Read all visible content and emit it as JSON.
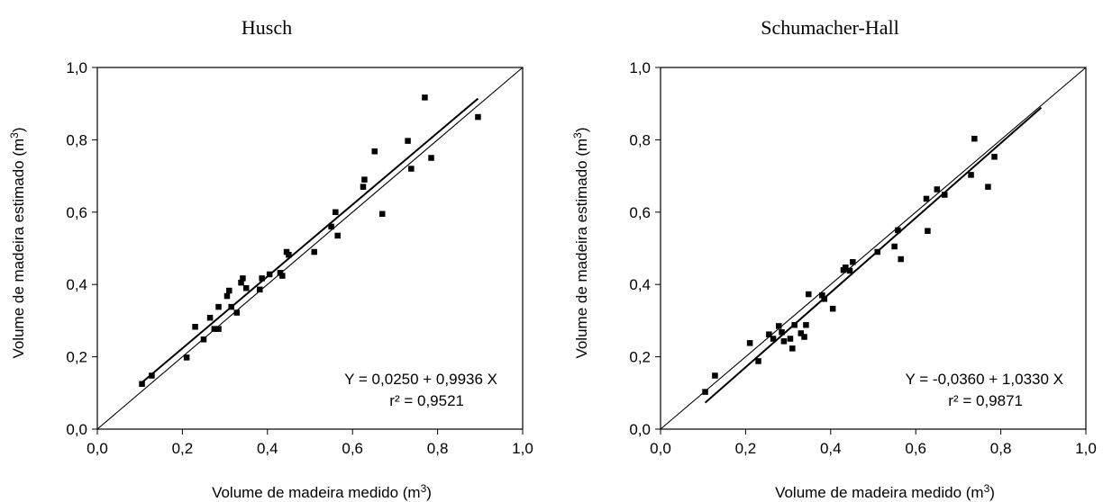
{
  "colors": {
    "axis": "#000000",
    "marker": "#000000",
    "background": "#ffffff"
  },
  "chart_data": [
    {
      "type": "scatter",
      "title": "Husch",
      "xlabel": "Volume de madeira medido (m",
      "xlabel_sup": "3",
      "xlabel_suffix": ")",
      "ylabel": "Volume de madeira estimado (m",
      "ylabel_sup": "3",
      "ylabel_suffix": ")",
      "xlim": [
        0,
        1
      ],
      "ylim": [
        0,
        1
      ],
      "xticks": [
        "0,0",
        "0,2",
        "0,4",
        "0,6",
        "0,8",
        "1,0"
      ],
      "yticks": [
        "0,0",
        "0,2",
        "0,4",
        "0,6",
        "0,8",
        "1,0"
      ],
      "equation": "Y = 0,0250 + 0,9936 X",
      "r2": "r² = 0,9521",
      "reference_line": {
        "x": [
          0,
          1
        ],
        "y": [
          0,
          1
        ]
      },
      "fit_line": {
        "x": [
          0.105,
          0.895
        ],
        "y": [
          0.129,
          0.914
        ]
      },
      "points": [
        {
          "x": 0.105,
          "y": 0.125
        },
        {
          "x": 0.128,
          "y": 0.148
        },
        {
          "x": 0.21,
          "y": 0.198
        },
        {
          "x": 0.23,
          "y": 0.283
        },
        {
          "x": 0.25,
          "y": 0.248
        },
        {
          "x": 0.265,
          "y": 0.308
        },
        {
          "x": 0.275,
          "y": 0.277
        },
        {
          "x": 0.285,
          "y": 0.277
        },
        {
          "x": 0.285,
          "y": 0.338
        },
        {
          "x": 0.305,
          "y": 0.368
        },
        {
          "x": 0.31,
          "y": 0.383
        },
        {
          "x": 0.315,
          "y": 0.338
        },
        {
          "x": 0.328,
          "y": 0.322
        },
        {
          "x": 0.338,
          "y": 0.405
        },
        {
          "x": 0.342,
          "y": 0.417
        },
        {
          "x": 0.35,
          "y": 0.39
        },
        {
          "x": 0.382,
          "y": 0.386
        },
        {
          "x": 0.387,
          "y": 0.417
        },
        {
          "x": 0.405,
          "y": 0.428
        },
        {
          "x": 0.43,
          "y": 0.432
        },
        {
          "x": 0.435,
          "y": 0.424
        },
        {
          "x": 0.445,
          "y": 0.49
        },
        {
          "x": 0.45,
          "y": 0.482
        },
        {
          "x": 0.51,
          "y": 0.49
        },
        {
          "x": 0.55,
          "y": 0.56
        },
        {
          "x": 0.56,
          "y": 0.6
        },
        {
          "x": 0.565,
          "y": 0.535
        },
        {
          "x": 0.625,
          "y": 0.67
        },
        {
          "x": 0.628,
          "y": 0.69
        },
        {
          "x": 0.652,
          "y": 0.768
        },
        {
          "x": 0.67,
          "y": 0.595
        },
        {
          "x": 0.73,
          "y": 0.797
        },
        {
          "x": 0.738,
          "y": 0.72
        },
        {
          "x": 0.77,
          "y": 0.917
        },
        {
          "x": 0.785,
          "y": 0.75
        },
        {
          "x": 0.895,
          "y": 0.863
        }
      ]
    },
    {
      "type": "scatter",
      "title": "Schumacher-Hall",
      "xlabel": "Volume de madeira medido (m",
      "xlabel_sup": "3",
      "xlabel_suffix": ")",
      "ylabel": "Volume de madeira estimado (m",
      "ylabel_sup": "3",
      "ylabel_suffix": ")",
      "xlim": [
        0,
        1
      ],
      "ylim": [
        0,
        1
      ],
      "xticks": [
        "0,0",
        "0,2",
        "0,4",
        "0,6",
        "0,8",
        "1,0"
      ],
      "yticks": [
        "0,0",
        "0,2",
        "0,4",
        "0,6",
        "0,8",
        "1,0"
      ],
      "equation": "Y = -0,0360 + 1,0330 X",
      "r2": "r² = 0,9871",
      "reference_line": {
        "x": [
          0,
          1
        ],
        "y": [
          0,
          1
        ]
      },
      "fit_line": {
        "x": [
          0.105,
          0.895
        ],
        "y": [
          0.073,
          0.889
        ]
      },
      "points": [
        {
          "x": 0.105,
          "y": 0.103
        },
        {
          "x": 0.128,
          "y": 0.148
        },
        {
          "x": 0.21,
          "y": 0.238
        },
        {
          "x": 0.23,
          "y": 0.188
        },
        {
          "x": 0.255,
          "y": 0.262
        },
        {
          "x": 0.265,
          "y": 0.25
        },
        {
          "x": 0.278,
          "y": 0.285
        },
        {
          "x": 0.285,
          "y": 0.268
        },
        {
          "x": 0.29,
          "y": 0.243
        },
        {
          "x": 0.305,
          "y": 0.25
        },
        {
          "x": 0.31,
          "y": 0.223
        },
        {
          "x": 0.315,
          "y": 0.288
        },
        {
          "x": 0.33,
          "y": 0.265
        },
        {
          "x": 0.338,
          "y": 0.255
        },
        {
          "x": 0.342,
          "y": 0.288
        },
        {
          "x": 0.348,
          "y": 0.373
        },
        {
          "x": 0.38,
          "y": 0.37
        },
        {
          "x": 0.385,
          "y": 0.36
        },
        {
          "x": 0.405,
          "y": 0.333
        },
        {
          "x": 0.43,
          "y": 0.44
        },
        {
          "x": 0.435,
          "y": 0.447
        },
        {
          "x": 0.445,
          "y": 0.438
        },
        {
          "x": 0.452,
          "y": 0.462
        },
        {
          "x": 0.51,
          "y": 0.49
        },
        {
          "x": 0.55,
          "y": 0.505
        },
        {
          "x": 0.558,
          "y": 0.55
        },
        {
          "x": 0.565,
          "y": 0.47
        },
        {
          "x": 0.625,
          "y": 0.637
        },
        {
          "x": 0.628,
          "y": 0.548
        },
        {
          "x": 0.65,
          "y": 0.663
        },
        {
          "x": 0.668,
          "y": 0.648
        },
        {
          "x": 0.73,
          "y": 0.703
        },
        {
          "x": 0.738,
          "y": 0.803
        },
        {
          "x": 0.77,
          "y": 0.67
        },
        {
          "x": 0.785,
          "y": 0.753
        }
      ]
    }
  ]
}
